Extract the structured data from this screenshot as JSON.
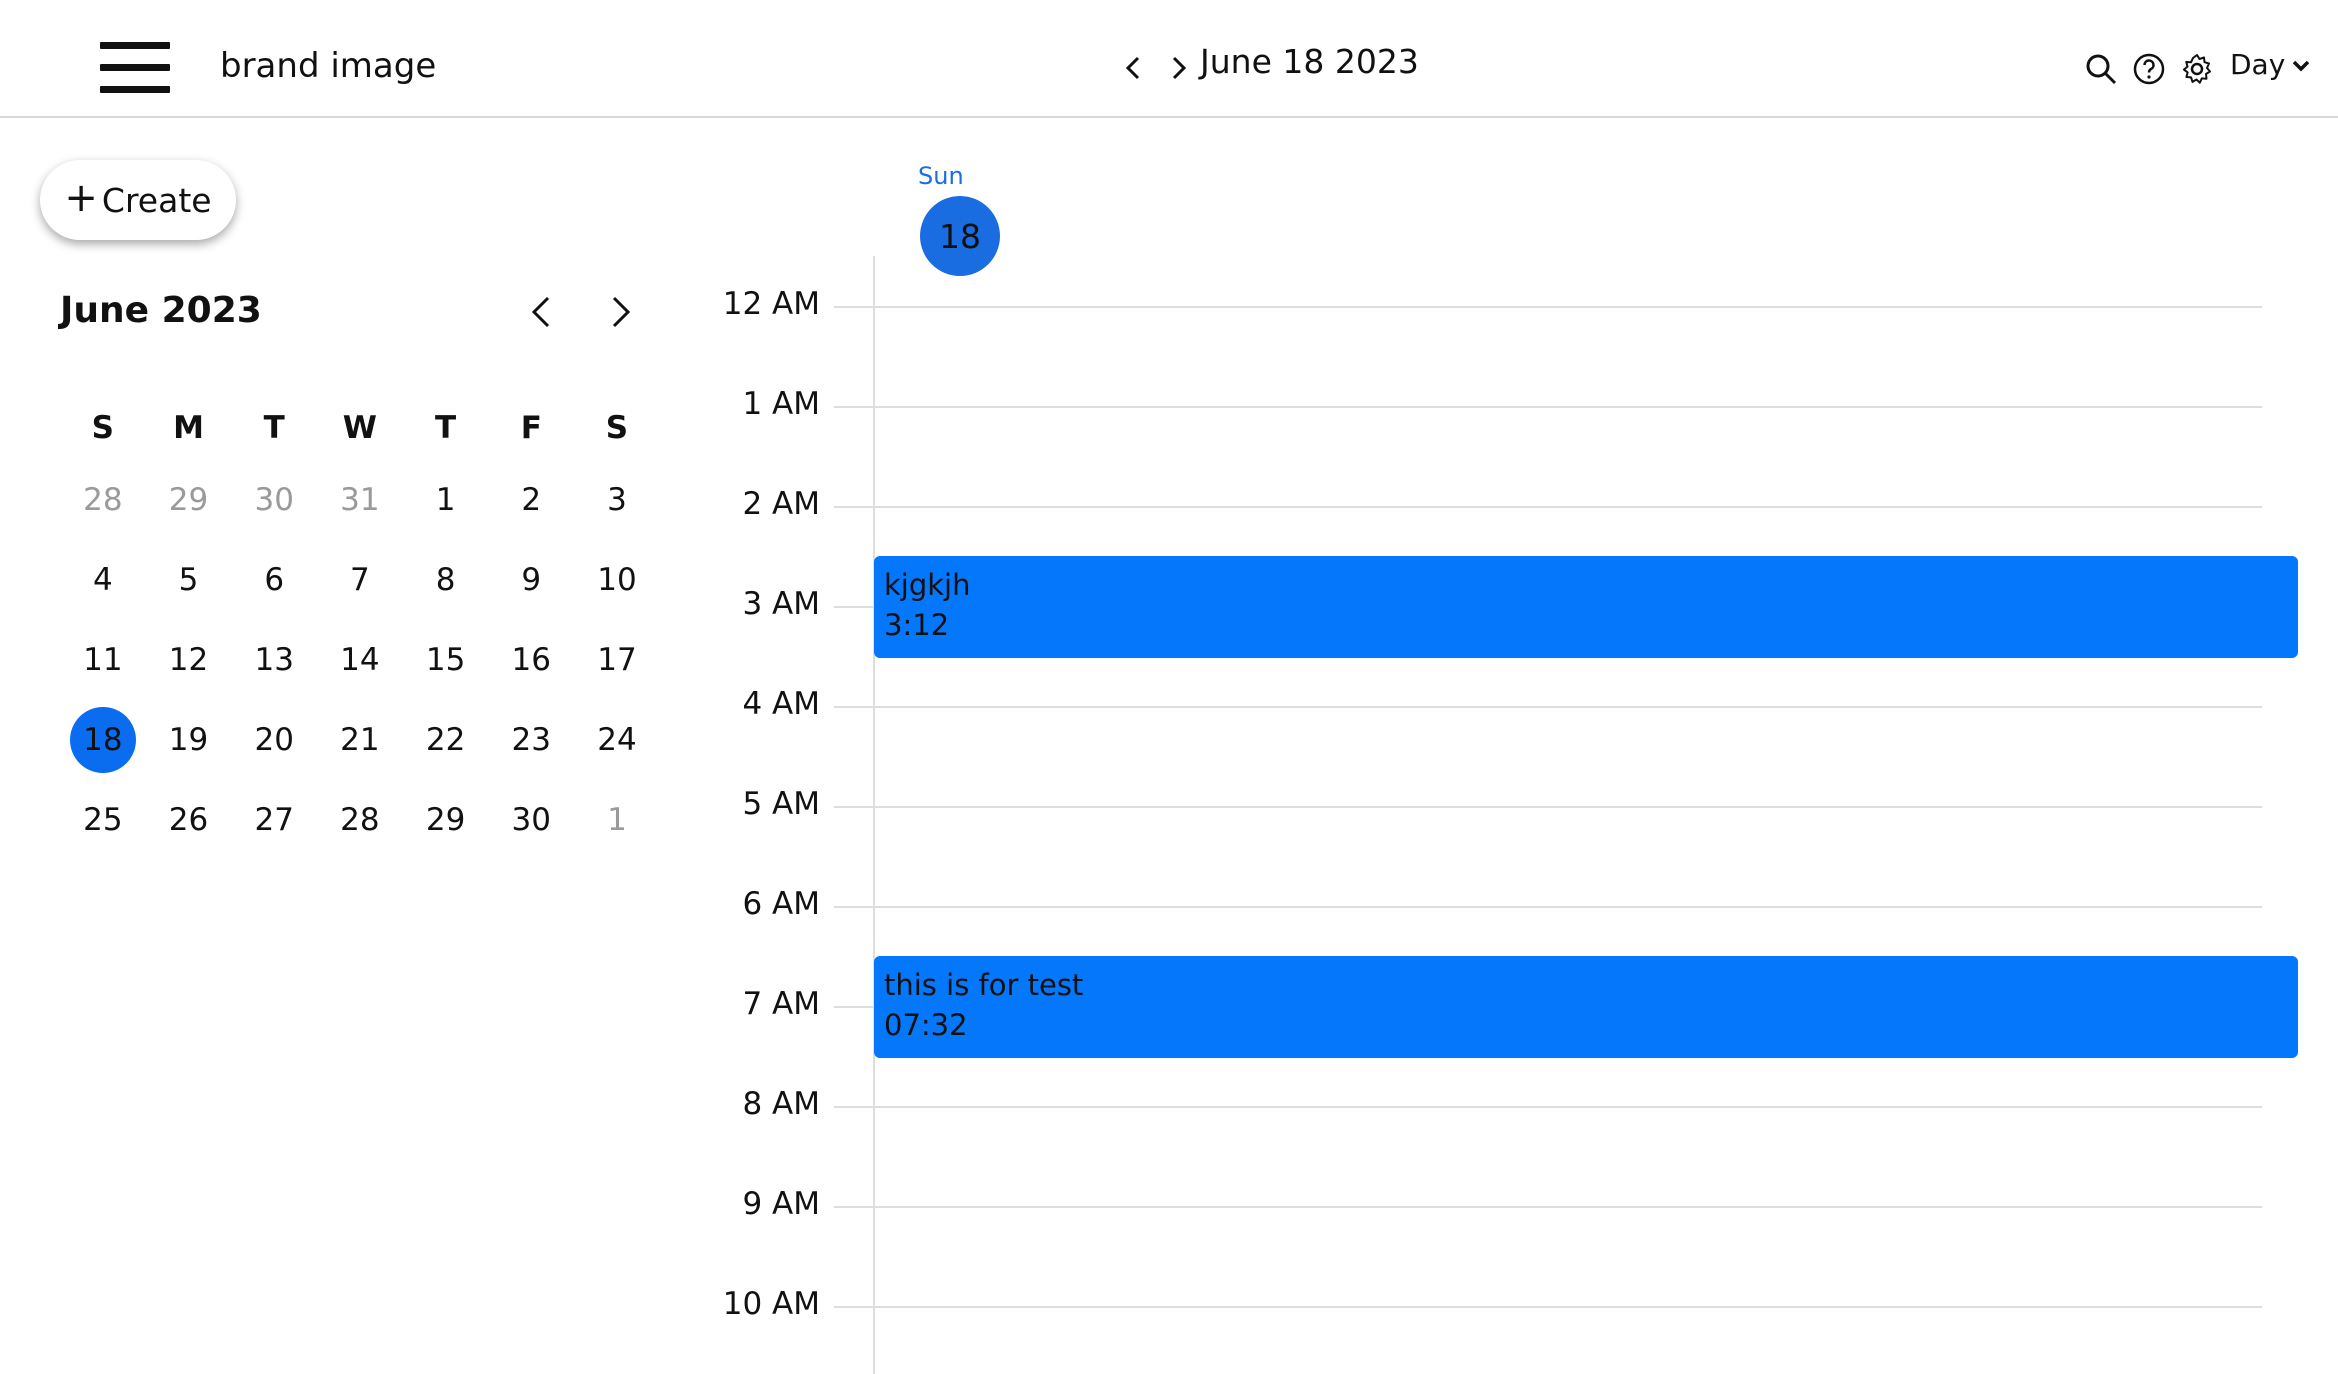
{
  "header": {
    "brand": "brand image",
    "date": "June 18 2023",
    "view": "Day",
    "icons": [
      "search-icon",
      "help-icon",
      "gear-icon"
    ]
  },
  "sidebar": {
    "create_label": "Create",
    "month_title": "June 2023",
    "weekdays": [
      "S",
      "M",
      "T",
      "W",
      "T",
      "F",
      "S"
    ],
    "weeks": [
      [
        {
          "d": "28",
          "other": true
        },
        {
          "d": "29",
          "other": true
        },
        {
          "d": "30",
          "other": true
        },
        {
          "d": "31",
          "other": true
        },
        {
          "d": "1"
        },
        {
          "d": "2"
        },
        {
          "d": "3"
        }
      ],
      [
        {
          "d": "4"
        },
        {
          "d": "5"
        },
        {
          "d": "6"
        },
        {
          "d": "7"
        },
        {
          "d": "8"
        },
        {
          "d": "9"
        },
        {
          "d": "10"
        }
      ],
      [
        {
          "d": "11"
        },
        {
          "d": "12"
        },
        {
          "d": "13"
        },
        {
          "d": "14"
        },
        {
          "d": "15"
        },
        {
          "d": "16"
        },
        {
          "d": "17"
        }
      ],
      [
        {
          "d": "18",
          "today": true
        },
        {
          "d": "19"
        },
        {
          "d": "20"
        },
        {
          "d": "21"
        },
        {
          "d": "22"
        },
        {
          "d": "23"
        },
        {
          "d": "24"
        }
      ],
      [
        {
          "d": "25"
        },
        {
          "d": "26"
        },
        {
          "d": "27"
        },
        {
          "d": "28"
        },
        {
          "d": "29"
        },
        {
          "d": "30"
        },
        {
          "d": "1",
          "other": true
        }
      ]
    ]
  },
  "day": {
    "weekday": "Sun",
    "date_num": "18",
    "hours": [
      "12 AM",
      "1 AM",
      "2 AM",
      "3 AM",
      "4 AM",
      "5 AM",
      "6 AM",
      "7 AM",
      "8 AM",
      "9 AM",
      "10 AM"
    ],
    "events": [
      {
        "title": "kjgkjh",
        "time": "3:12"
      },
      {
        "title": "this is for test",
        "time": "07:32"
      }
    ]
  },
  "colors": {
    "accent": "#1a6de0",
    "event": "#0477fb",
    "today": "#0a6df0",
    "gridline": "#dedede"
  }
}
